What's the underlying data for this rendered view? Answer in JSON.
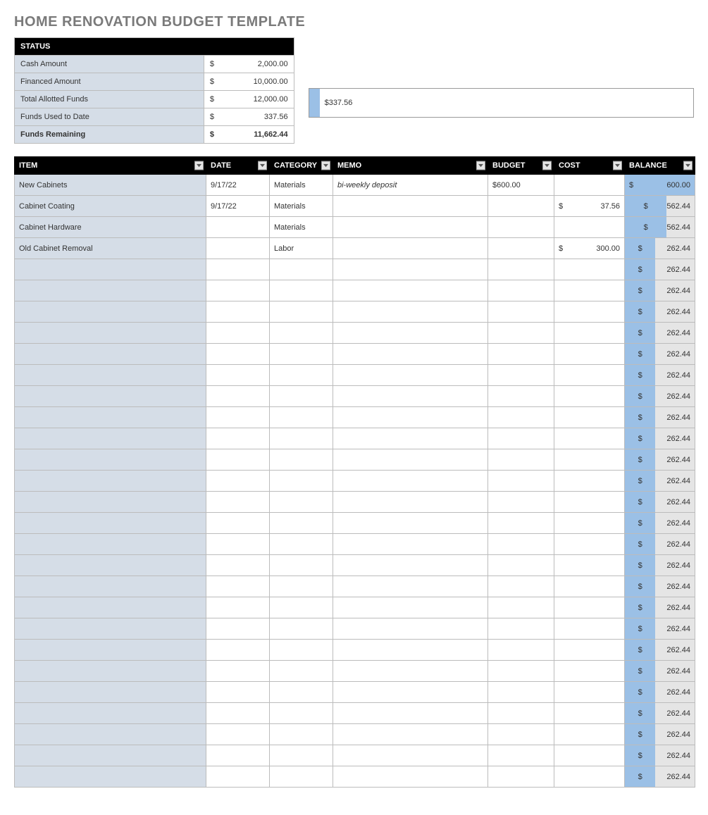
{
  "page_title": "HOME RENOVATION BUDGET TEMPLATE",
  "colors": {
    "header_bg": "#000000",
    "header_fg": "#ffffff",
    "label_bg": "#d5dde7",
    "balance_bg": "#e5e5e5",
    "bar_fill": "#9bc0e6",
    "border": "#bcbcbc"
  },
  "status": {
    "header": "STATUS",
    "rows": [
      {
        "label": "Cash Amount",
        "symbol": "$",
        "value": "2,000.00",
        "bold": false
      },
      {
        "label": "Financed Amount",
        "symbol": "$",
        "value": "10,000.00",
        "bold": false
      },
      {
        "label": "Total Allotted Funds",
        "symbol": "$",
        "value": "12,000.00",
        "bold": false
      },
      {
        "label": "Funds Used to Date",
        "symbol": "$",
        "value": "337.56",
        "bold": false
      },
      {
        "label": "Funds Remaining",
        "symbol": "$",
        "value": "11,662.44",
        "bold": true
      }
    ]
  },
  "progress": {
    "label": "$337.56",
    "percent": 2.81
  },
  "grid": {
    "columns": [
      {
        "key": "item",
        "label": "ITEM",
        "filter": true
      },
      {
        "key": "date",
        "label": "DATE",
        "filter": true
      },
      {
        "key": "category",
        "label": "CATEGORY",
        "filter": true
      },
      {
        "key": "memo",
        "label": "MEMO",
        "filter": true
      },
      {
        "key": "budget",
        "label": "BUDGET",
        "filter": true
      },
      {
        "key": "cost",
        "label": "COST",
        "filter": true
      },
      {
        "key": "balance",
        "label": "BALANCE",
        "filter": true
      }
    ],
    "balance_max": 600.0,
    "rows": [
      {
        "item": "New Cabinets",
        "date": "9/17/22",
        "category": "Materials",
        "memo": "bi-weekly deposit",
        "budget": "$600.00",
        "cost_sym": "",
        "cost": "",
        "bal_sym": "$",
        "balance": "600.00",
        "bal_num": 600.0
      },
      {
        "item": "Cabinet Coating",
        "date": "9/17/22",
        "category": "Materials",
        "memo": "",
        "budget": "",
        "cost_sym": "$",
        "cost": "37.56",
        "bal_sym": "$",
        "balance": "562.44",
        "bal_num": 562.44
      },
      {
        "item": "Cabinet Hardware",
        "date": "",
        "category": "Materials",
        "memo": "",
        "budget": "",
        "cost_sym": "",
        "cost": "",
        "bal_sym": "$",
        "balance": "562.44",
        "bal_num": 562.44
      },
      {
        "item": "Old Cabinet Removal",
        "date": "",
        "category": "Labor",
        "memo": "",
        "budget": "",
        "cost_sym": "$",
        "cost": "300.00",
        "bal_sym": "$",
        "balance": "262.44",
        "bal_num": 262.44
      },
      {
        "item": "",
        "date": "",
        "category": "",
        "memo": "",
        "budget": "",
        "cost_sym": "",
        "cost": "",
        "bal_sym": "$",
        "balance": "262.44",
        "bal_num": 262.44
      },
      {
        "item": "",
        "date": "",
        "category": "",
        "memo": "",
        "budget": "",
        "cost_sym": "",
        "cost": "",
        "bal_sym": "$",
        "balance": "262.44",
        "bal_num": 262.44
      },
      {
        "item": "",
        "date": "",
        "category": "",
        "memo": "",
        "budget": "",
        "cost_sym": "",
        "cost": "",
        "bal_sym": "$",
        "balance": "262.44",
        "bal_num": 262.44
      },
      {
        "item": "",
        "date": "",
        "category": "",
        "memo": "",
        "budget": "",
        "cost_sym": "",
        "cost": "",
        "bal_sym": "$",
        "balance": "262.44",
        "bal_num": 262.44
      },
      {
        "item": "",
        "date": "",
        "category": "",
        "memo": "",
        "budget": "",
        "cost_sym": "",
        "cost": "",
        "bal_sym": "$",
        "balance": "262.44",
        "bal_num": 262.44
      },
      {
        "item": "",
        "date": "",
        "category": "",
        "memo": "",
        "budget": "",
        "cost_sym": "",
        "cost": "",
        "bal_sym": "$",
        "balance": "262.44",
        "bal_num": 262.44
      },
      {
        "item": "",
        "date": "",
        "category": "",
        "memo": "",
        "budget": "",
        "cost_sym": "",
        "cost": "",
        "bal_sym": "$",
        "balance": "262.44",
        "bal_num": 262.44
      },
      {
        "item": "",
        "date": "",
        "category": "",
        "memo": "",
        "budget": "",
        "cost_sym": "",
        "cost": "",
        "bal_sym": "$",
        "balance": "262.44",
        "bal_num": 262.44
      },
      {
        "item": "",
        "date": "",
        "category": "",
        "memo": "",
        "budget": "",
        "cost_sym": "",
        "cost": "",
        "bal_sym": "$",
        "balance": "262.44",
        "bal_num": 262.44
      },
      {
        "item": "",
        "date": "",
        "category": "",
        "memo": "",
        "budget": "",
        "cost_sym": "",
        "cost": "",
        "bal_sym": "$",
        "balance": "262.44",
        "bal_num": 262.44
      },
      {
        "item": "",
        "date": "",
        "category": "",
        "memo": "",
        "budget": "",
        "cost_sym": "",
        "cost": "",
        "bal_sym": "$",
        "balance": "262.44",
        "bal_num": 262.44
      },
      {
        "item": "",
        "date": "",
        "category": "",
        "memo": "",
        "budget": "",
        "cost_sym": "",
        "cost": "",
        "bal_sym": "$",
        "balance": "262.44",
        "bal_num": 262.44
      },
      {
        "item": "",
        "date": "",
        "category": "",
        "memo": "",
        "budget": "",
        "cost_sym": "",
        "cost": "",
        "bal_sym": "$",
        "balance": "262.44",
        "bal_num": 262.44
      },
      {
        "item": "",
        "date": "",
        "category": "",
        "memo": "",
        "budget": "",
        "cost_sym": "",
        "cost": "",
        "bal_sym": "$",
        "balance": "262.44",
        "bal_num": 262.44
      },
      {
        "item": "",
        "date": "",
        "category": "",
        "memo": "",
        "budget": "",
        "cost_sym": "",
        "cost": "",
        "bal_sym": "$",
        "balance": "262.44",
        "bal_num": 262.44
      },
      {
        "item": "",
        "date": "",
        "category": "",
        "memo": "",
        "budget": "",
        "cost_sym": "",
        "cost": "",
        "bal_sym": "$",
        "balance": "262.44",
        "bal_num": 262.44
      },
      {
        "item": "",
        "date": "",
        "category": "",
        "memo": "",
        "budget": "",
        "cost_sym": "",
        "cost": "",
        "bal_sym": "$",
        "balance": "262.44",
        "bal_num": 262.44
      },
      {
        "item": "",
        "date": "",
        "category": "",
        "memo": "",
        "budget": "",
        "cost_sym": "",
        "cost": "",
        "bal_sym": "$",
        "balance": "262.44",
        "bal_num": 262.44
      },
      {
        "item": "",
        "date": "",
        "category": "",
        "memo": "",
        "budget": "",
        "cost_sym": "",
        "cost": "",
        "bal_sym": "$",
        "balance": "262.44",
        "bal_num": 262.44
      },
      {
        "item": "",
        "date": "",
        "category": "",
        "memo": "",
        "budget": "",
        "cost_sym": "",
        "cost": "",
        "bal_sym": "$",
        "balance": "262.44",
        "bal_num": 262.44
      },
      {
        "item": "",
        "date": "",
        "category": "",
        "memo": "",
        "budget": "",
        "cost_sym": "",
        "cost": "",
        "bal_sym": "$",
        "balance": "262.44",
        "bal_num": 262.44
      },
      {
        "item": "",
        "date": "",
        "category": "",
        "memo": "",
        "budget": "",
        "cost_sym": "",
        "cost": "",
        "bal_sym": "$",
        "balance": "262.44",
        "bal_num": 262.44
      },
      {
        "item": "",
        "date": "",
        "category": "",
        "memo": "",
        "budget": "",
        "cost_sym": "",
        "cost": "",
        "bal_sym": "$",
        "balance": "262.44",
        "bal_num": 262.44
      },
      {
        "item": "",
        "date": "",
        "category": "",
        "memo": "",
        "budget": "",
        "cost_sym": "",
        "cost": "",
        "bal_sym": "$",
        "balance": "262.44",
        "bal_num": 262.44
      },
      {
        "item": "",
        "date": "",
        "category": "",
        "memo": "",
        "budget": "",
        "cost_sym": "",
        "cost": "",
        "bal_sym": "$",
        "balance": "262.44",
        "bal_num": 262.44
      }
    ]
  }
}
